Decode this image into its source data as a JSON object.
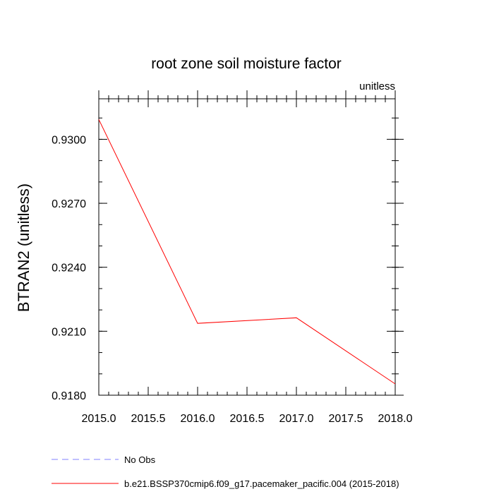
{
  "chart_data": {
    "type": "line",
    "title": "root zone soil moisture factor",
    "units_label": "unitless",
    "ylabel": "BTRAN2  (unitless)",
    "xlabel": "",
    "xlim": [
      2015.0,
      2018.0
    ],
    "ylim": [
      0.918,
      0.9319
    ],
    "x_ticks": [
      "2015.0",
      "2015.5",
      "2016.0",
      "2016.5",
      "2017.0",
      "2017.5",
      "2018.0"
    ],
    "x_tick_values": [
      2015.0,
      2015.5,
      2016.0,
      2016.5,
      2017.0,
      2017.5,
      2018.0
    ],
    "y_ticks": [
      "0.9180",
      "0.9210",
      "0.9240",
      "0.9270",
      "0.9300"
    ],
    "y_tick_values": [
      0.918,
      0.921,
      0.924,
      0.927,
      0.93
    ],
    "grid": false,
    "legend_position": "bottom",
    "series": [
      {
        "name": "No Obs",
        "color": "#8080ff",
        "style": "dashed",
        "x": [],
        "y": []
      },
      {
        "name": "b.e21.BSSP370cmip6.f09_g17.pacemaker_pacific.004 (2015-2018)",
        "color": "#ff0000",
        "style": "solid",
        "x": [
          2015.0,
          2016.0,
          2017.0,
          2018.0
        ],
        "y": [
          0.93093,
          0.92137,
          0.92163,
          0.91853
        ]
      }
    ]
  }
}
